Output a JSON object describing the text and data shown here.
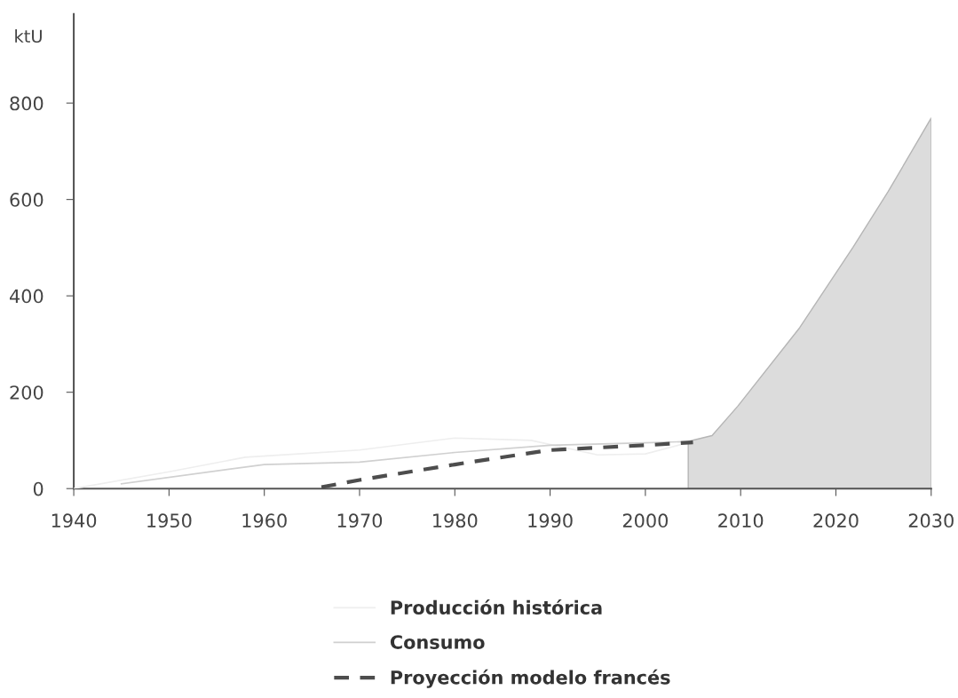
{
  "chart_data": {
    "type": "line",
    "ylabel": "ktU",
    "xlim": [
      1940,
      2030
    ],
    "xticks": [
      1940,
      1950,
      1960,
      1970,
      1980,
      1990,
      2000,
      2010,
      2020,
      2030
    ],
    "ylim": [
      0,
      985
    ],
    "yticks": [
      0,
      200,
      400,
      600,
      800
    ],
    "grid": false,
    "legend": "bottom",
    "series": [
      {
        "name": "Producción histórica",
        "color": "#eeeeee",
        "x": [
          1940,
          1950,
          1958,
          1970,
          1980,
          1988,
          1995,
          2000,
          2005
        ],
        "values": [
          0,
          35,
          65,
          80,
          105,
          100,
          70,
          72,
          98
        ]
      },
      {
        "name": "Consumo",
        "color": "#d0d0d0",
        "x": [
          1945,
          1960,
          1970,
          1980,
          1990,
          2000,
          2005
        ],
        "values": [
          10,
          50,
          55,
          75,
          90,
          95,
          98
        ]
      },
      {
        "name": "Proyección modelo francés",
        "color": "#4d4d4d",
        "line_style": "dashed",
        "x": [
          1966,
          1970,
          1980,
          1990,
          2000,
          2005
        ],
        "values": [
          3,
          18,
          50,
          80,
          90,
          96
        ]
      },
      {
        "type": "area",
        "color": "#dcdcdc",
        "x": [
          2004.5,
          2007,
          2009.7,
          2016.2,
          2021.8,
          2025.5,
          2030
        ],
        "values": [
          98,
          110,
          171,
          334,
          501,
          617,
          769
        ]
      }
    ]
  }
}
